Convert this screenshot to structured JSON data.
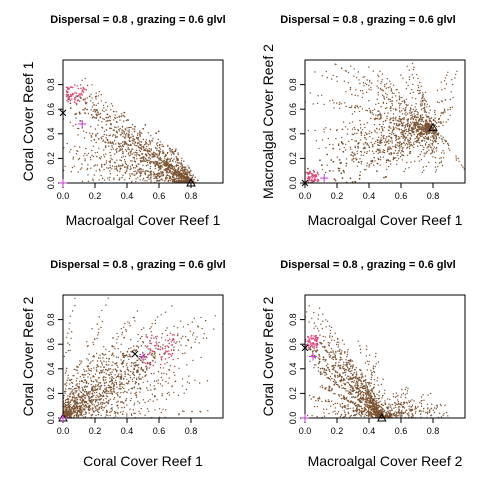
{
  "chart_data": [
    {
      "type": "scatter",
      "title": "Dispersal =  0.8 , grazing =  0.6 glvl",
      "xlabel": "Macroalgal Cover Reef 1",
      "ylabel": "Coral Cover Reef 1",
      "xlim": [
        0,
        1
      ],
      "ylim": [
        0,
        1
      ],
      "xticks": [
        "0.0",
        "0.2",
        "0.4",
        "0.6",
        "0.8"
      ],
      "yticks": [
        "0.0",
        "0.2",
        "0.4",
        "0.6",
        "0.8"
      ],
      "grid": false,
      "colors": {
        "trajectory": "#7a5230",
        "transient": "#e0457a",
        "marker_start": "#cc33cc"
      },
      "markers": [
        {
          "symbol": "x",
          "x": 0.0,
          "y": 0.57,
          "color": "#000000"
        },
        {
          "symbol": "triangle",
          "x": 0.8,
          "y": 0.0,
          "color": "#000000"
        },
        {
          "symbol": "plus",
          "x": 0.0,
          "y": 0.0,
          "color": "#cc33cc"
        },
        {
          "symbol": "plus",
          "x": 0.12,
          "y": 0.48,
          "color": "#cc33cc"
        }
      ],
      "attractors": [
        {
          "x": 0.8,
          "y": 0.0,
          "spread": 0.3
        }
      ],
      "sources": [
        {
          "x": 0.05,
          "y": 0.7
        }
      ],
      "magenta_region": {
        "x": 0.08,
        "y": 0.72,
        "spread": 0.12
      }
    },
    {
      "type": "scatter",
      "title": "Dispersal =  0.8 , grazing =  0.6 glvl",
      "xlabel": "Macroalgal Cover Reef 1",
      "ylabel": "Macroalgal Cover Reef 2",
      "xlim": [
        0,
        1
      ],
      "ylim": [
        0,
        1
      ],
      "xticks": [
        "0.0",
        "0.2",
        "0.4",
        "0.6",
        "0.8"
      ],
      "yticks": [
        "0.0",
        "0.2",
        "0.4",
        "0.6",
        "0.8"
      ],
      "grid": false,
      "colors": {
        "trajectory": "#7a5230",
        "transient": "#e0457a",
        "marker_start": "#cc33cc"
      },
      "markers": [
        {
          "symbol": "triangle",
          "x": 0.8,
          "y": 0.45,
          "color": "#000000"
        },
        {
          "symbol": "x",
          "x": 0.0,
          "y": 0.0,
          "color": "#000000"
        },
        {
          "symbol": "plus",
          "x": 0.12,
          "y": 0.04,
          "color": "#cc33cc"
        }
      ],
      "attractors": [
        {
          "x": 0.8,
          "y": 0.45,
          "spread": 0.35
        }
      ],
      "sources": [
        {
          "x": 0.0,
          "y": 0.0
        }
      ],
      "magenta_region": {
        "x": 0.05,
        "y": 0.05,
        "spread": 0.07
      }
    },
    {
      "type": "scatter",
      "title": "Dispersal =  0.8 , grazing =  0.6 glvl",
      "xlabel": "Coral Cover Reef 1",
      "ylabel": "Coral Cover Reef 2",
      "xlim": [
        0,
        1
      ],
      "ylim": [
        0,
        1
      ],
      "xticks": [
        "0.0",
        "0.2",
        "0.4",
        "0.6",
        "0.8"
      ],
      "yticks": [
        "0.0",
        "0.2",
        "0.4",
        "0.6",
        "0.8"
      ],
      "grid": false,
      "colors": {
        "trajectory": "#7a5230",
        "transient": "#e0457a",
        "marker_start": "#cc33cc"
      },
      "markers": [
        {
          "symbol": "triangle",
          "x": 0.0,
          "y": 0.0,
          "color": "#000000"
        },
        {
          "symbol": "x",
          "x": 0.45,
          "y": 0.52,
          "color": "#000000"
        },
        {
          "symbol": "plus",
          "x": 0.0,
          "y": 0.0,
          "color": "#cc33cc"
        },
        {
          "symbol": "plus",
          "x": 0.5,
          "y": 0.5,
          "color": "#cc33cc"
        }
      ],
      "attractors": [
        {
          "x": 0.0,
          "y": 0.0,
          "spread": 0.35
        }
      ],
      "sources": [
        {
          "x": 0.5,
          "y": 0.5
        }
      ],
      "magenta_region": {
        "x": 0.6,
        "y": 0.55,
        "spread": 0.2
      }
    },
    {
      "type": "scatter",
      "title": "Dispersal =  0.8 , grazing =  0.6 glvl",
      "xlabel": "Macroalgal Cover Reef 2",
      "ylabel": "Coral Cover Reef 2",
      "xlim": [
        0,
        1
      ],
      "ylim": [
        0,
        1
      ],
      "xticks": [
        "0.0",
        "0.2",
        "0.4",
        "0.6",
        "0.8"
      ],
      "yticks": [
        "0.0",
        "0.2",
        "0.4",
        "0.6",
        "0.8"
      ],
      "grid": false,
      "colors": {
        "trajectory": "#7a5230",
        "transient": "#e0457a",
        "marker_start": "#cc33cc"
      },
      "markers": [
        {
          "symbol": "x",
          "x": 0.0,
          "y": 0.57,
          "color": "#000000"
        },
        {
          "symbol": "triangle",
          "x": 0.48,
          "y": 0.0,
          "color": "#000000"
        },
        {
          "symbol": "plus",
          "x": 0.0,
          "y": 0.0,
          "color": "#cc33cc"
        },
        {
          "symbol": "plus",
          "x": 0.05,
          "y": 0.5,
          "color": "#cc33cc"
        }
      ],
      "attractors": [
        {
          "x": 0.48,
          "y": 0.0,
          "spread": 0.25
        }
      ],
      "sources": [
        {
          "x": 0.03,
          "y": 0.6
        }
      ],
      "magenta_region": {
        "x": 0.04,
        "y": 0.62,
        "spread": 0.08
      }
    }
  ]
}
